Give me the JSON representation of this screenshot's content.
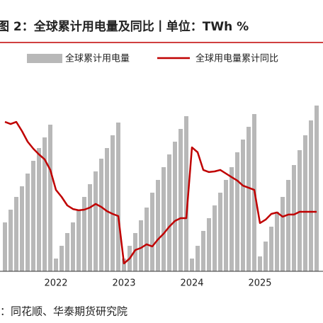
{
  "chart_data": {
    "type": "bar",
    "title": "图 2：全球累计用电量及同比丨单位：TWh %",
    "source": "：同花顺、华泰期货研究院",
    "categories": [
      null,
      null,
      null,
      null,
      null,
      null,
      null,
      null,
      null,
      "2022",
      null,
      null,
      null,
      null,
      null,
      null,
      null,
      null,
      null,
      null,
      null,
      "2023",
      null,
      null,
      null,
      null,
      null,
      null,
      null,
      null,
      null,
      null,
      null,
      "2024",
      null,
      null,
      null,
      null,
      null,
      null,
      null,
      null,
      null,
      null,
      null,
      "2025",
      null,
      null,
      null,
      null,
      null,
      null,
      null,
      null,
      null,
      null
    ],
    "series": [
      {
        "name": "全球累计用电量",
        "color": "#b8b8b8",
        "type": "bar",
        "values": [
          23,
          29,
          35,
          40,
          46,
          52,
          58,
          63,
          69,
          6,
          12,
          18,
          23,
          29,
          35,
          41,
          47,
          53,
          58,
          64,
          70,
          6,
          12,
          18,
          24,
          30,
          37,
          43,
          49,
          55,
          61,
          67,
          73,
          6,
          12,
          19,
          25,
          31,
          37,
          43,
          49,
          56,
          62,
          68,
          74,
          7,
          14,
          21,
          28,
          35,
          43,
          50,
          57,
          64,
          71,
          78
        ]
      },
      {
        "name": "全球用电量累计同比",
        "color": "#c00000",
        "type": "line",
        "axis": "y2",
        "values": [
          70.3,
          69.3,
          70.3,
          66,
          61,
          57.7,
          55,
          52.7,
          47.7,
          38.3,
          35,
          31,
          29.3,
          28.7,
          29,
          30,
          31.7,
          30.3,
          28.3,
          27,
          26,
          3.7,
          6,
          10,
          11,
          12.7,
          11.7,
          15,
          17.7,
          21,
          23.7,
          25,
          25,
          58.3,
          56,
          47.7,
          46.7,
          47,
          47.7,
          46,
          44.3,
          42.7,
          40.3,
          39.3,
          38.3,
          22.7,
          24.3,
          27,
          27.7,
          25.7,
          26.7,
          26.7,
          28,
          28,
          28,
          28
        ]
      }
    ],
    "ylim": [
      0,
      100
    ],
    "y2lim": [
      0,
      100
    ]
  }
}
